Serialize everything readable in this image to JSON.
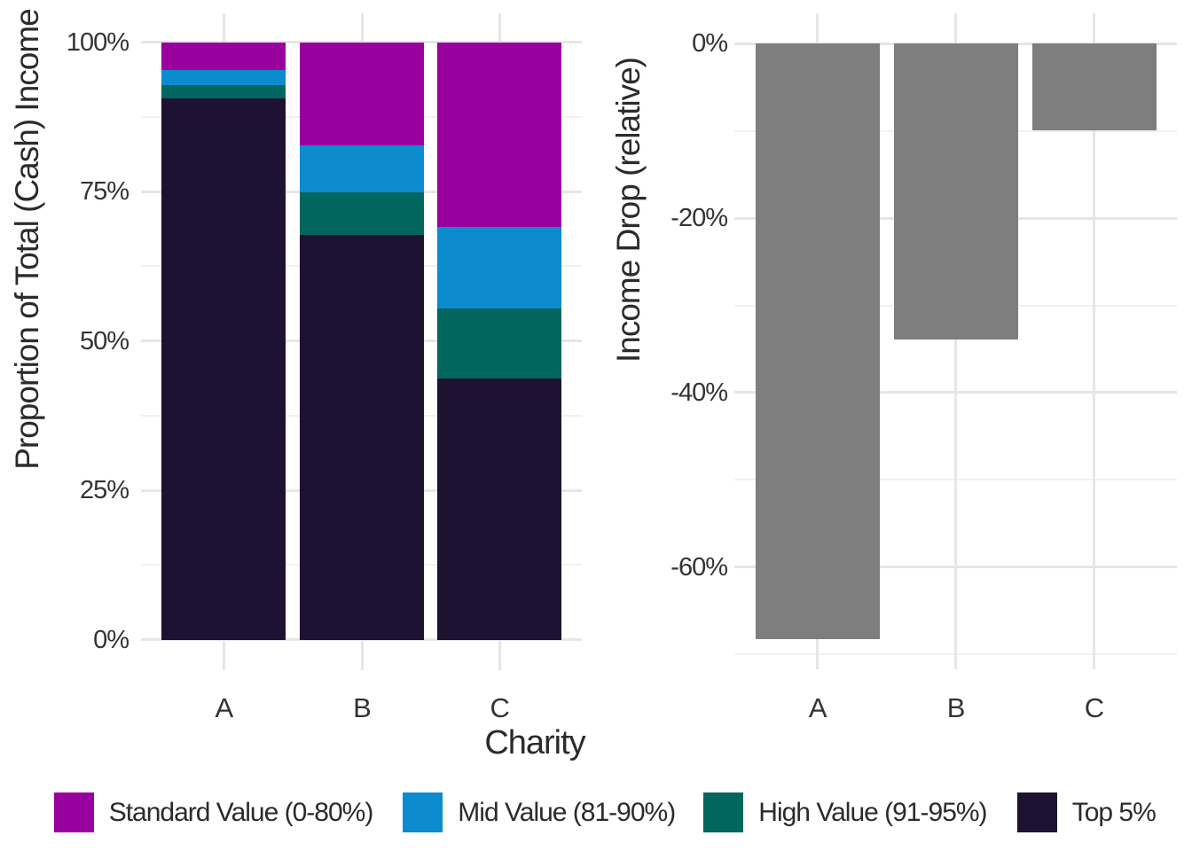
{
  "chart_data": [
    {
      "type": "stacked_bar",
      "title": "",
      "xlabel": "Charity",
      "ylabel": "Proportion of Total (Cash) Income",
      "categories": [
        "A",
        "B",
        "C"
      ],
      "series": [
        {
          "name": "Top 5%",
          "color": "#1E1233",
          "values": [
            90.6,
            67.8,
            43.7
          ]
        },
        {
          "name": "High Value (91-95%)",
          "color": "#01665E",
          "values": [
            2.3,
            7.1,
            11.7
          ]
        },
        {
          "name": "Mid Value (81-90%)",
          "color": "#0C8BCE",
          "values": [
            2.4,
            7.9,
            13.7
          ]
        },
        {
          "name": "Standard Value (0-80%)",
          "color": "#9A009E",
          "values": [
            4.7,
            17.2,
            30.9
          ]
        }
      ],
      "stack_order": "bottom-to-top",
      "ytick_labels": [
        "0%",
        "25%",
        "50%",
        "75%",
        "100%"
      ],
      "ytick_values": [
        0,
        25,
        50,
        75,
        100
      ],
      "yminor_values": [
        12.5,
        37.5,
        62.5,
        87.5
      ],
      "ylim": [
        0,
        100
      ],
      "grid": true,
      "legend_position": "bottom"
    },
    {
      "type": "bar",
      "title": "",
      "xlabel": "",
      "ylabel": "Income Drop (relative)",
      "categories": [
        "A",
        "B",
        "C"
      ],
      "values": [
        -68.3,
        -33.9,
        -9.9
      ],
      "bar_color": "#7E7E7E",
      "ytick_labels": [
        "0%",
        "-20%",
        "-40%",
        "-60%"
      ],
      "ytick_values": [
        0,
        -20,
        -40,
        -60
      ],
      "yminor_values": [
        -10,
        -30,
        -50,
        -70
      ],
      "ylim": [
        -72,
        3
      ],
      "grid": true
    }
  ],
  "legend": {
    "items": [
      {
        "label": "Standard Value (0-80%)",
        "color": "#9A009E"
      },
      {
        "label": "Mid Value (81-90%)",
        "color": "#0C8BCE"
      },
      {
        "label": "High Value (91-95%)",
        "color": "#01665E"
      },
      {
        "label": "Top 5%",
        "color": "#1E1233"
      }
    ]
  }
}
